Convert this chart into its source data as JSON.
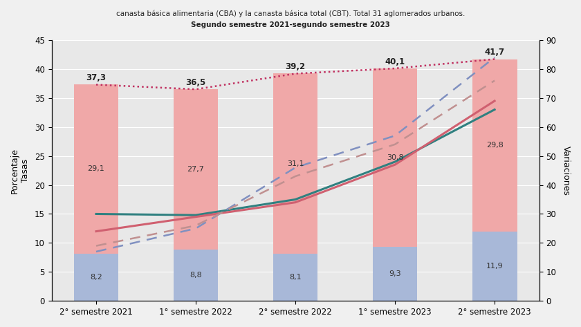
{
  "categories": [
    "2° semestre 2021",
    "1° semestre 2022",
    "2° semestre 2022",
    "1° semestre 2023",
    "2° semestre 2023"
  ],
  "indigencia_vals": [
    8.2,
    8.8,
    8.1,
    9.3,
    11.9
  ],
  "pobreza_above_vals": [
    29.1,
    27.7,
    31.1,
    30.8,
    29.8
  ],
  "pobreza_total": [
    37.3,
    36.5,
    39.2,
    40.1,
    41.7
  ],
  "line_teal_solid": [
    15.0,
    14.8,
    17.5,
    24.0,
    33.0
  ],
  "line_red_solid": [
    12.0,
    14.5,
    17.0,
    23.5,
    34.5
  ],
  "line_blue_dashed": [
    8.5,
    12.5,
    23.0,
    28.5,
    42.0
  ],
  "line_pink_dashed": [
    9.5,
    13.0,
    21.5,
    27.0,
    38.0
  ],
  "bar_blue_color": "#a8b8d8",
  "bar_pink_color": "#f0a8a8",
  "line_dotted_color": "#c03060",
  "line_teal_color": "#308080",
  "line_red_color": "#d06070",
  "line_blue_dash_color": "#8090c0",
  "line_pink_dash_color": "#c09090",
  "subtitle1": "canasta básica alimentaria (CBA) y la canasta básica total (CBT). Total 31 aglomerados urbanos.",
  "subtitle2": "Segundo semestre 2021-segundo semestre 2023",
  "ylabel_left": "Porcentaje\nTasas",
  "ylabel_right": "Variaciones",
  "ylim_left": [
    0,
    45
  ],
  "ylim_right": [
    0,
    90
  ],
  "yticks_left": [
    0,
    5,
    10,
    15,
    20,
    25,
    30,
    35,
    40,
    45
  ],
  "yticks_right": [
    0,
    10,
    20,
    30,
    40,
    50,
    60,
    70,
    80,
    90
  ],
  "background_color": "#e8e8e8"
}
